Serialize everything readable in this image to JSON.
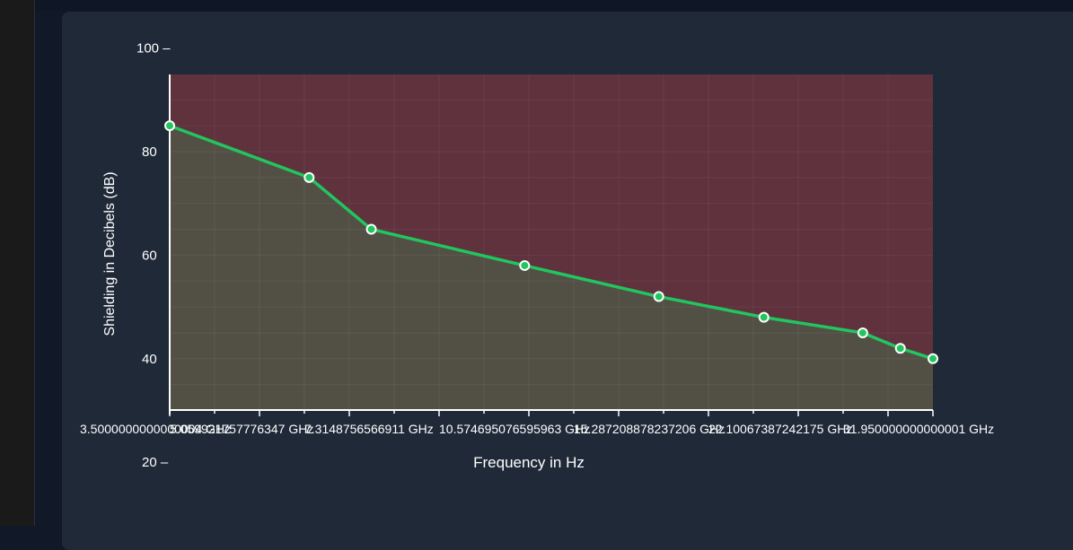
{
  "chart_data": {
    "type": "area",
    "xlabel": "Frequency in Hz",
    "ylabel": "Shielding in Decibels (dB)",
    "x_tick_labels": [
      "3.5000000000000004 GHz",
      "5.059921757776347 GHz",
      "7.3148756566911 GHz",
      "10.574695076595963 GHz",
      "15.287208878237206 GHz",
      "22.10067387242175 GHz",
      "31.950000000000001 GHz"
    ],
    "y_ticks": [
      20,
      40,
      60,
      80,
      100
    ],
    "y_tick_labels": [
      "20 –",
      "40",
      "60",
      "80",
      "100 –"
    ],
    "plot_ylim": [
      30,
      95
    ],
    "x_scale": "log",
    "x": [
      3.5,
      6.2,
      8.0,
      15.0,
      26.0,
      40.0,
      60.0,
      70.0,
      80.0
    ],
    "xlim": [
      3.5,
      80.0
    ],
    "values": [
      85,
      75,
      65,
      58,
      52,
      48,
      45,
      42,
      40
    ],
    "grid": true,
    "colors": {
      "line": "#22c55e",
      "fill_above": "#5f323d",
      "fill_below": "#524f45",
      "axis": "#ffffff",
      "text": "#ffffff"
    }
  }
}
